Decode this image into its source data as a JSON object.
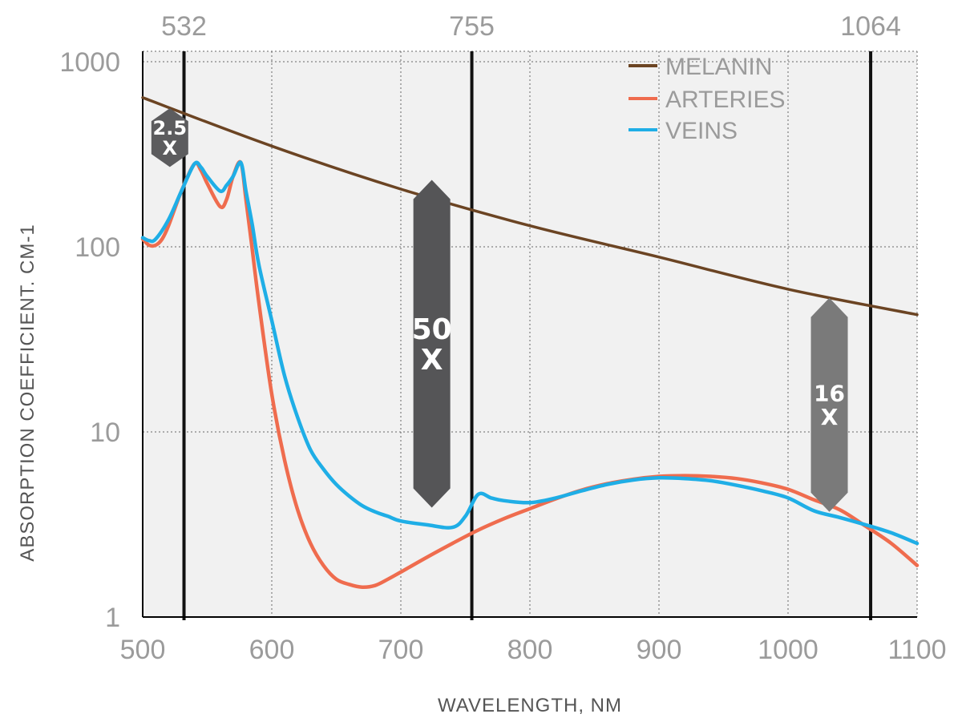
{
  "chart_data": {
    "type": "line",
    "title": "",
    "xlabel": "WAVELENGTH, NM",
    "ylabel": "ABSORPTION COEFFICIENT. CM-1",
    "xlim": [
      500,
      1100
    ],
    "ylim": [
      0.9,
      1000
    ],
    "yscale": "log",
    "grid": true,
    "legend_position": "top-right",
    "x_ticks": [
      "500",
      "600",
      "700",
      "800",
      "900",
      "1000",
      "1100"
    ],
    "y_ticks": [
      "1",
      "10",
      "100",
      "1000"
    ],
    "top_ticks": [
      "532",
      "755",
      "1064"
    ],
    "reference_lines": [
      532,
      755,
      1064
    ],
    "series": [
      {
        "name": "MELANIN",
        "color": "#6b4423",
        "x": [
          500,
          600,
          700,
          800,
          900,
          1000,
          1100
        ],
        "y": [
          640,
          350,
          205,
          130,
          88,
          59,
          43
        ]
      },
      {
        "name": "ARTERIES",
        "color": "#ef6c4e",
        "x": [
          500,
          505,
          510,
          515,
          520,
          530,
          540,
          545,
          550,
          560,
          565,
          570,
          576,
          580,
          585,
          590,
          600,
          610,
          620,
          630,
          640,
          650,
          660,
          670,
          680,
          690,
          700,
          720,
          740,
          760,
          780,
          800,
          820,
          840,
          860,
          880,
          900,
          920,
          940,
          960,
          980,
          1000,
          1020,
          1040,
          1060,
          1080,
          1100
        ],
        "y": [
          110,
          102,
          102,
          110,
          130,
          200,
          280,
          260,
          220,
          165,
          180,
          240,
          285,
          180,
          95,
          50,
          16,
          7,
          3.8,
          2.5,
          1.9,
          1.6,
          1.5,
          1.45,
          1.48,
          1.6,
          1.75,
          2.1,
          2.5,
          2.95,
          3.4,
          3.85,
          4.35,
          4.85,
          5.25,
          5.55,
          5.75,
          5.8,
          5.75,
          5.6,
          5.3,
          4.9,
          4.3,
          3.8,
          3.1,
          2.5,
          1.9
        ]
      },
      {
        "name": "VEINS",
        "color": "#1faee6",
        "x": [
          500,
          505,
          510,
          520,
          530,
          540,
          545,
          550,
          560,
          565,
          570,
          576,
          580,
          585,
          590,
          600,
          610,
          620,
          630,
          640,
          650,
          660,
          670,
          680,
          690,
          700,
          720,
          740,
          750,
          760,
          770,
          780,
          800,
          820,
          840,
          860,
          880,
          900,
          920,
          940,
          960,
          980,
          1000,
          1020,
          1040,
          1060,
          1080,
          1100
        ],
        "y": [
          112,
          108,
          110,
          140,
          200,
          280,
          270,
          240,
          200,
          215,
          240,
          285,
          200,
          130,
          80,
          40,
          20,
          12,
          8,
          6.3,
          5.2,
          4.5,
          4.0,
          3.7,
          3.5,
          3.3,
          3.15,
          3.05,
          3.5,
          4.6,
          4.4,
          4.25,
          4.15,
          4.4,
          4.8,
          5.2,
          5.5,
          5.65,
          5.6,
          5.45,
          5.15,
          4.8,
          4.4,
          3.75,
          3.45,
          3.15,
          2.85,
          2.5
        ]
      }
    ],
    "badges": [
      {
        "lines": [
          "2.5",
          "X"
        ],
        "color": "#5c5c5e",
        "x": 521,
        "y_top": 560,
        "y_bottom": 270
      },
      {
        "lines": [
          "50",
          "X"
        ],
        "color": "#555557",
        "x": 724,
        "y_top": 230,
        "y_bottom": 3.9
      },
      {
        "lines": [
          "16",
          "X"
        ],
        "color": "#7a7a7a",
        "x": 1032,
        "y_top": 53,
        "y_bottom": 3.7
      }
    ]
  }
}
